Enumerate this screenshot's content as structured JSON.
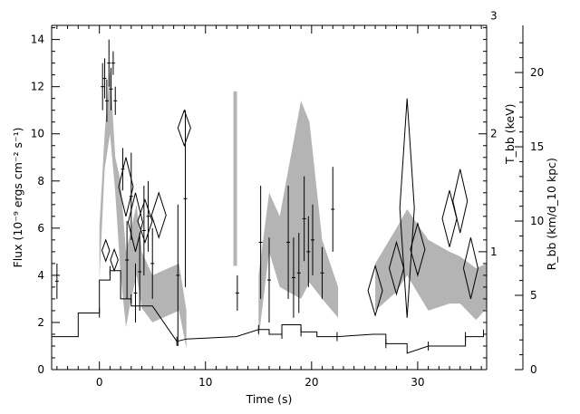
{
  "chart_data": {
    "type": "line",
    "xlabel": "Time (s)",
    "ylabel": "Flux (10⁻⁹ ergs cm⁻² s⁻¹)",
    "y2label_temp": "T_bb (keV)",
    "y3label_radius": "R_bb (km/d_10 kpc)",
    "xlim": [
      -4.5,
      36.5
    ],
    "ylim": [
      0,
      14.6
    ],
    "x_ticks": [
      0,
      10,
      20,
      30
    ],
    "y_ticks": [
      0,
      2,
      4,
      6,
      8,
      10,
      12,
      14
    ],
    "temp_ticks": [
      1,
      2,
      3
    ],
    "temp_axis_keV_per_flux_unit": 0.2,
    "radius_ticks": [
      0,
      5,
      10,
      15,
      20
    ],
    "radius_axis_flux_per_unit": 0.63,
    "colors": {
      "band": "#b4b4b4",
      "line": "#000000"
    },
    "series": [
      {
        "role": "flux_step",
        "x": [
          -4.5,
          -2,
          -2,
          0,
          0,
          1,
          1,
          2,
          2,
          3,
          3,
          5,
          7.3,
          8.2,
          12.9,
          15,
          16,
          16,
          17.2,
          17.2,
          19,
          19,
          20.5,
          20.5,
          22.4,
          25.8,
          27,
          27,
          29,
          29,
          31,
          33,
          34.5,
          34.5,
          36.2,
          36.2
        ],
        "y": [
          1.4,
          1.4,
          2.4,
          2.4,
          3.8,
          3.8,
          4.2,
          4.2,
          3.0,
          3.0,
          2.7,
          2.7,
          1.2,
          1.3,
          1.4,
          1.7,
          1.7,
          1.5,
          1.5,
          1.9,
          1.9,
          1.6,
          1.6,
          1.4,
          1.4,
          1.5,
          1.5,
          1.1,
          1.1,
          0.7,
          1.0,
          1.0,
          1.0,
          1.4,
          1.4,
          1.7
        ]
      },
      {
        "role": "temperature_band",
        "x": [
          -4.5,
          0,
          0.5,
          1,
          1.5,
          2,
          2.5,
          3,
          3.5,
          4,
          5,
          7.5,
          8.2,
          15,
          16,
          17,
          19,
          19.8,
          21,
          22.5,
          26,
          28,
          29,
          31,
          33,
          34,
          35.5,
          36.5
        ],
        "lo": [
          3.4,
          3.8,
          8.5,
          10.0,
          7.5,
          4.0,
          1.8,
          3.0,
          4.0,
          2.6,
          2.0,
          2.5,
          0.9,
          1.3,
          5.0,
          3.5,
          3.0,
          3.7,
          3.0,
          2.2,
          2.5,
          3.3,
          4.0,
          2.5,
          2.8,
          2.8,
          2.1,
          2.6
        ],
        "hi": [
          7.6,
          6.1,
          10.0,
          12.8,
          9.0,
          8.0,
          5.0,
          6.0,
          7.0,
          5.0,
          4.0,
          4.5,
          2.5,
          4.0,
          7.5,
          6.5,
          11.4,
          10.5,
          5.5,
          3.5,
          4.5,
          6.0,
          6.8,
          5.5,
          5.0,
          4.8,
          4.3,
          4.5
        ]
      },
      {
        "role": "radius_error_bars",
        "x": [
          -4,
          0.3,
          0.5,
          0.7,
          0.9,
          1.1,
          1.3,
          1.5,
          2.2,
          2.6,
          3.0,
          3.4,
          3.8,
          4.2,
          4.6,
          5.0,
          7.4,
          8.1,
          13.0,
          15.2,
          16.0,
          17.8,
          18.3,
          18.8,
          19.3,
          19.7,
          20.1,
          21.0,
          22.0
        ],
        "lo": [
          3.0,
          11.0,
          11.5,
          10.5,
          12.0,
          11.0,
          12.5,
          10.8,
          7.6,
          3.0,
          5.5,
          2.0,
          2.5,
          4.0,
          5.0,
          3.0,
          1.0,
          3.5,
          2.5,
          3.0,
          2.0,
          3.0,
          2.2,
          2.4,
          4.6,
          3.5,
          4.0,
          3.0,
          5.0
        ],
        "hi": [
          4.5,
          13.0,
          13.2,
          12.3,
          14.0,
          12.8,
          13.5,
          12.0,
          9.4,
          6.3,
          9.2,
          4.5,
          5.8,
          7.8,
          8.0,
          6.0,
          7.0,
          11.0,
          4.0,
          7.8,
          5.6,
          7.8,
          5.6,
          5.8,
          8.2,
          6.5,
          7.0,
          5.2,
          8.6
        ]
      },
      {
        "role": "radius_diamonds",
        "x": [
          0.6,
          1.4,
          2.5,
          3.4,
          4.3,
          5.6,
          8.0,
          26.0,
          28.0,
          29.0,
          30.0,
          33.0,
          34.0,
          35.0
        ],
        "lo": [
          4.6,
          4.2,
          6.5,
          5.0,
          5.4,
          5.6,
          9.5,
          2.3,
          3.2,
          2.2,
          4.0,
          5.2,
          5.8,
          3.0
        ],
        "hi": [
          5.5,
          5.1,
          9.0,
          7.5,
          7.2,
          7.5,
          11.0,
          4.4,
          5.4,
          11.5,
          6.2,
          7.6,
          8.5,
          5.6
        ]
      },
      {
        "role": "isolated_band_segment",
        "x": [
          12.8,
          12.8
        ],
        "y": [
          4.4,
          11.8
        ]
      }
    ]
  }
}
